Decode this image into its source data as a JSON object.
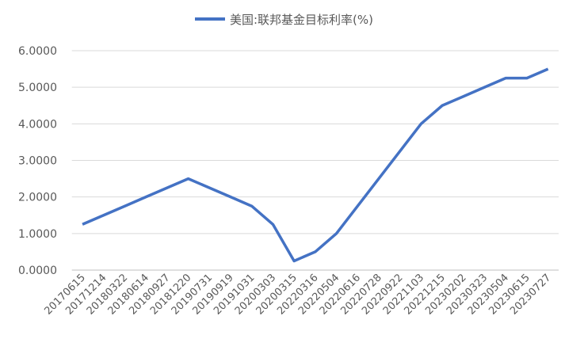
{
  "chart_data": {
    "type": "line",
    "categories": [
      "20170615",
      "20171214",
      "20180322",
      "20180614",
      "20180927",
      "20181220",
      "20190731",
      "20190919",
      "20191031",
      "20200303",
      "20200315",
      "20220316",
      "20220504",
      "20220616",
      "20220728",
      "20220922",
      "20221103",
      "20221215",
      "20230202",
      "20230323",
      "20230504",
      "20230615",
      "20230727"
    ],
    "series": [
      {
        "name": "美国:联邦基金目标利率(%)",
        "color": "#4472c4",
        "values": [
          1.25,
          1.5,
          1.75,
          2.0,
          2.25,
          2.5,
          2.25,
          2.0,
          1.75,
          1.25,
          0.25,
          0.5,
          1.0,
          1.75,
          2.5,
          3.25,
          4.0,
          4.5,
          4.75,
          5.0,
          5.25,
          5.25,
          5.5
        ]
      }
    ],
    "ylim": [
      0,
      6
    ],
    "yticks": [
      {
        "value": 0,
        "label": "0.0000"
      },
      {
        "value": 1,
        "label": "1.0000"
      },
      {
        "value": 2,
        "label": "2.0000"
      },
      {
        "value": 3,
        "label": "3.0000"
      },
      {
        "value": 4,
        "label": "4.0000"
      },
      {
        "value": 5,
        "label": "5.0000"
      },
      {
        "value": 6,
        "label": "6.0000"
      }
    ],
    "grid": true,
    "legend": "top"
  }
}
